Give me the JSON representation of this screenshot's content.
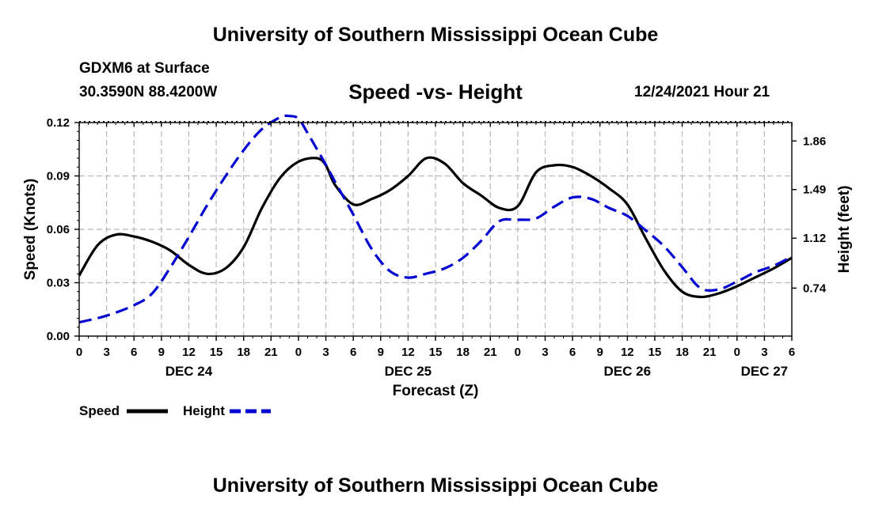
{
  "header": {
    "title": "University of Southern Mississippi Ocean Cube",
    "station": "GDXM6 at Surface",
    "coords": "30.3590N  88.4200W",
    "subtitle": "Speed -vs- Height",
    "datetime": "12/24/2021 Hour 21"
  },
  "footer": {
    "title": "University of Southern Mississippi Ocean Cube"
  },
  "chart_data": {
    "type": "line",
    "title": "Speed -vs- Height",
    "xlabel": "Forecast (Z)",
    "ylabel": "Speed (Knots)",
    "y2label": "Height (feet)",
    "xlim": [
      0,
      78
    ],
    "ylim": [
      0,
      0.12
    ],
    "y2lim": [
      0.375,
      2.0
    ],
    "x_ticks": [
      0,
      3,
      6,
      9,
      12,
      15,
      18,
      21,
      24,
      27,
      30,
      33,
      36,
      39,
      42,
      45,
      48,
      51,
      54,
      57,
      60,
      63,
      66,
      69,
      72,
      75,
      78
    ],
    "x_tick_labels": [
      "0",
      "3",
      "6",
      "9",
      "12",
      "15",
      "18",
      "21",
      "0",
      "3",
      "6",
      "9",
      "12",
      "15",
      "18",
      "21",
      "0",
      "3",
      "6",
      "9",
      "12",
      "15",
      "18",
      "21",
      "0",
      "3",
      "6"
    ],
    "y_ticks": [
      "0.00",
      "0.03",
      "0.06",
      "0.09",
      "0.12"
    ],
    "y2_ticks": [
      "0.74",
      "1.12",
      "1.49",
      "1.86"
    ],
    "date_labels": [
      {
        "label": "DEC 24",
        "x": 12
      },
      {
        "label": "DEC 25",
        "x": 36
      },
      {
        "label": "DEC 26",
        "x": 60
      },
      {
        "label": "DEC 27",
        "x": 75
      }
    ],
    "grid": true,
    "legend_position": "bottom-left",
    "series": [
      {
        "name": "Speed",
        "axis": "left",
        "color": "#000000",
        "style": "solid",
        "x": [
          0,
          2,
          4,
          6,
          8,
          10,
          12,
          14,
          16,
          18,
          20,
          22,
          24,
          26,
          27,
          28,
          30,
          32,
          34,
          36,
          38,
          40,
          42,
          44,
          46,
          48,
          50,
          52,
          54,
          56,
          58,
          60,
          62,
          64,
          66,
          68,
          70,
          72,
          74,
          76,
          78
        ],
        "values": [
          0.034,
          0.051,
          0.057,
          0.056,
          0.053,
          0.048,
          0.04,
          0.035,
          0.038,
          0.05,
          0.072,
          0.089,
          0.098,
          0.1,
          0.096,
          0.085,
          0.074,
          0.077,
          0.082,
          0.09,
          0.1,
          0.097,
          0.086,
          0.079,
          0.072,
          0.073,
          0.092,
          0.096,
          0.095,
          0.09,
          0.083,
          0.074,
          0.055,
          0.037,
          0.025,
          0.022,
          0.024,
          0.028,
          0.033,
          0.038,
          0.044
        ]
      },
      {
        "name": "Height",
        "axis": "right",
        "color": "#0000d0",
        "style": "dashed",
        "x": [
          0,
          3,
          6,
          8,
          10,
          12,
          14,
          16,
          18,
          20,
          22,
          23,
          24,
          25,
          26,
          27,
          28,
          30,
          32,
          34,
          36,
          38,
          40,
          42,
          44,
          46,
          48,
          50,
          52,
          54,
          56,
          58,
          60,
          62,
          64,
          66,
          68,
          70,
          72,
          74,
          76,
          78
        ],
        "values": [
          0.48,
          0.53,
          0.61,
          0.7,
          0.9,
          1.13,
          1.37,
          1.59,
          1.79,
          1.95,
          2.04,
          2.05,
          2.03,
          1.92,
          1.8,
          1.68,
          1.55,
          1.3,
          1.04,
          0.87,
          0.82,
          0.85,
          0.89,
          0.97,
          1.1,
          1.25,
          1.26,
          1.27,
          1.36,
          1.43,
          1.42,
          1.35,
          1.29,
          1.18,
          1.06,
          0.9,
          0.74,
          0.73,
          0.79,
          0.86,
          0.91,
          0.98
        ]
      }
    ]
  }
}
